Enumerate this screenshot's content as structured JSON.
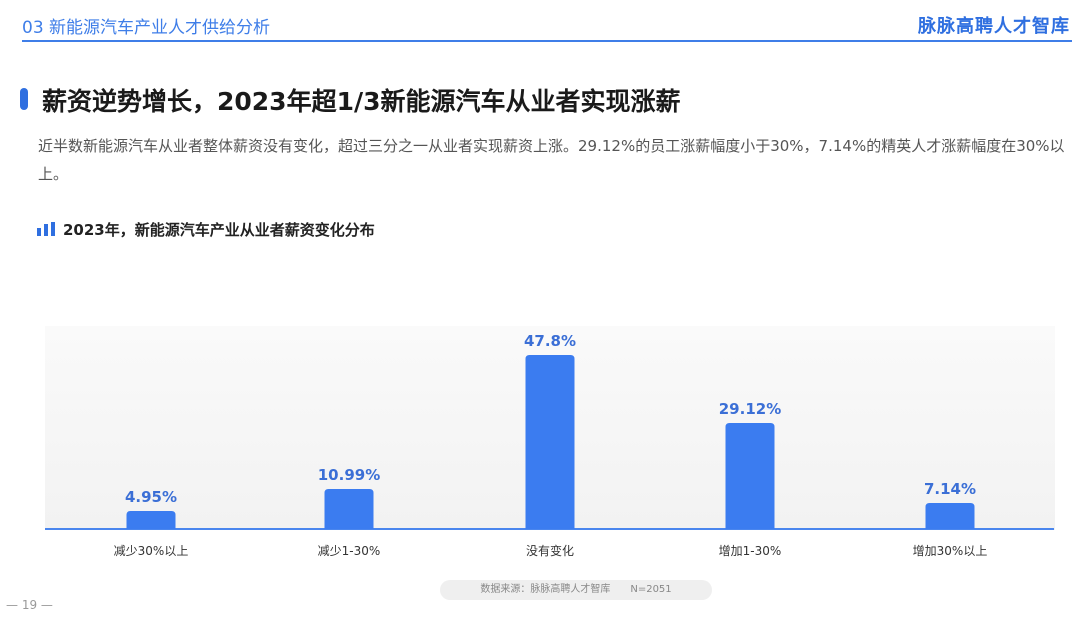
{
  "header": {
    "section_title": "03 新能源汽车产业人才供给分析",
    "brand": "脉脉高聘人才智库"
  },
  "headline": "薪资逆势增长，2023年超1/3新能源汽车从业者实现涨薪",
  "description": "近半数新能源汽车从业者整体薪资没有变化，超过三分之一从业者实现薪资上涨。29.12%的员工涨薪幅度小于30%，7.14%的精英人才涨薪幅度在30%以上。",
  "colors": {
    "accent": "#2f6fe0",
    "bar": "#3b7cf0",
    "value_label": "#3b6fd6",
    "axis_line": "#4a86ee"
  },
  "chart_data": {
    "type": "bar",
    "title": "2023年，新能源汽车产业从业者薪资变化分布",
    "categories": [
      "减少30%以上",
      "减少1-30%",
      "没有变化",
      "增加1-30%",
      "增加30%以上"
    ],
    "values": [
      4.95,
      10.99,
      47.8,
      29.12,
      7.14
    ],
    "value_labels": [
      "4.95%",
      "10.99%",
      "47.8%",
      "29.12%",
      "7.14%"
    ],
    "xlabel": "",
    "ylabel": "",
    "ylim": [
      0,
      47.8
    ],
    "grid": false,
    "legend": "none"
  },
  "source": "数据来源：脉脉高聘人才智库　　N=2051",
  "page_number": "— 19 —"
}
